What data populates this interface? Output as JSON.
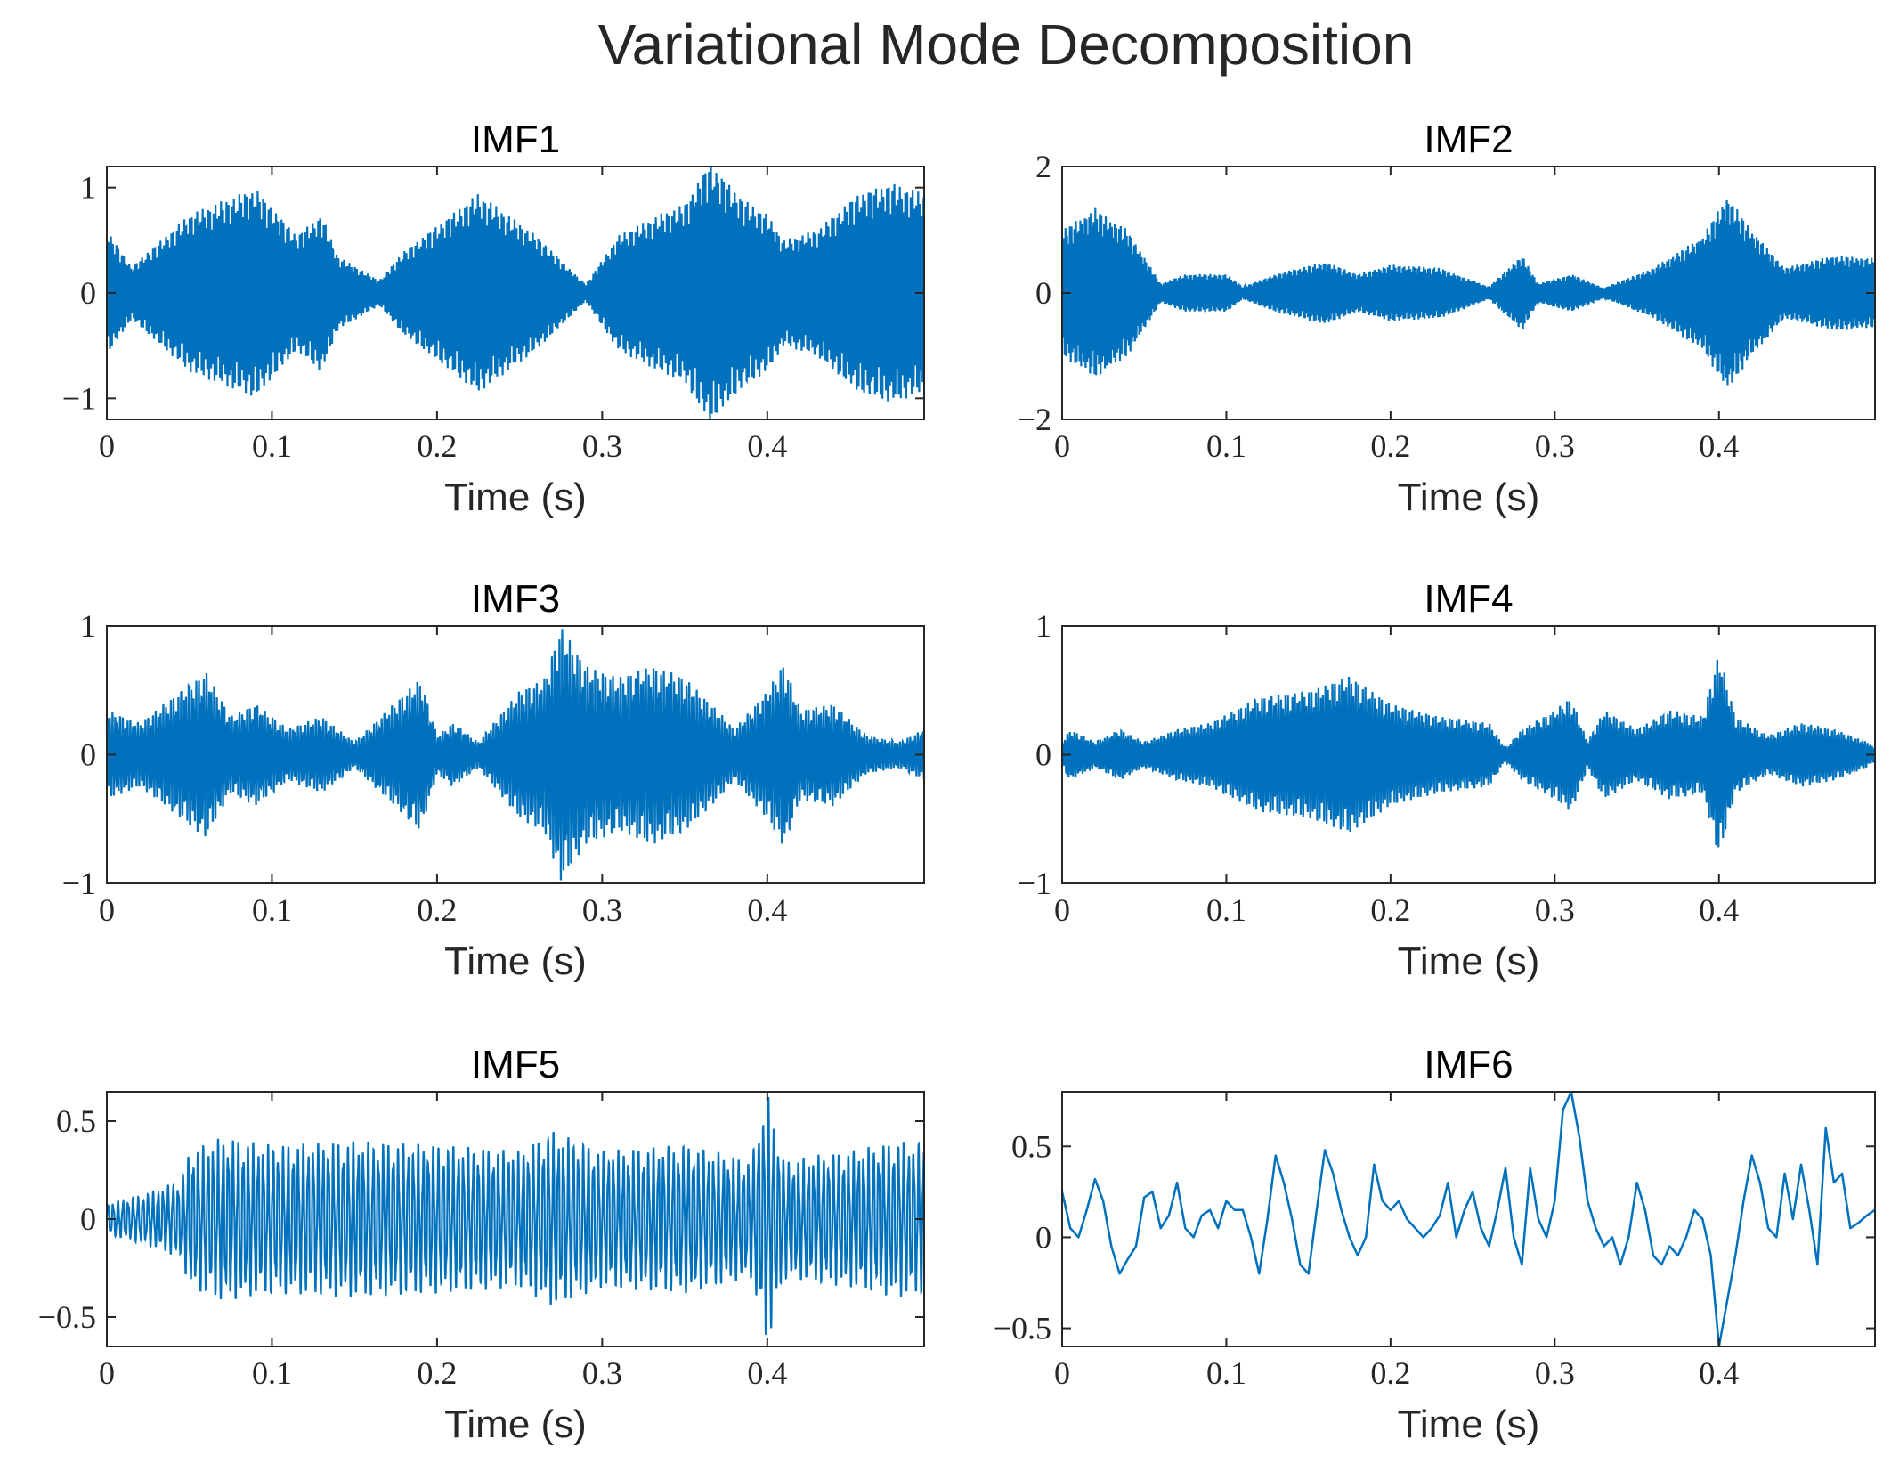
{
  "figure": {
    "title": "Variational Mode Decomposition"
  },
  "colors": {
    "line": "#0072BD",
    "axis": "#262626",
    "background": "#ffffff"
  },
  "chart_data": [
    {
      "type": "line",
      "title": "IMF1",
      "xlabel": "Time (s)",
      "ylabel": "",
      "xlim": [
        0,
        0.495
      ],
      "ylim": [
        -1.2,
        1.2
      ],
      "xticks": [
        0,
        0.1,
        0.2,
        0.3,
        0.4
      ],
      "xtick_labels": [
        "0",
        "0.1",
        "0.2",
        "0.3",
        "0.4"
      ],
      "yticks": [
        -1,
        0,
        1
      ],
      "ytick_labels": [
        "−1",
        "0",
        "1"
      ],
      "signal": {
        "kind": "carrier",
        "cycles_per_second": 900,
        "envelope": [
          [
            0,
            0.6
          ],
          [
            0.015,
            0.25
          ],
          [
            0.05,
            0.75
          ],
          [
            0.09,
            1.0
          ],
          [
            0.115,
            0.55
          ],
          [
            0.13,
            0.75
          ],
          [
            0.14,
            0.35
          ],
          [
            0.165,
            0.12
          ],
          [
            0.18,
            0.4
          ],
          [
            0.225,
            0.95
          ],
          [
            0.26,
            0.55
          ],
          [
            0.29,
            0.08
          ],
          [
            0.31,
            0.55
          ],
          [
            0.335,
            0.75
          ],
          [
            0.35,
            0.85
          ],
          [
            0.365,
            1.25
          ],
          [
            0.385,
            0.9
          ],
          [
            0.4,
            0.75
          ],
          [
            0.41,
            0.5
          ],
          [
            0.43,
            0.6
          ],
          [
            0.455,
            0.95
          ],
          [
            0.475,
            1.05
          ],
          [
            0.495,
            0.95
          ]
        ]
      }
    },
    {
      "type": "line",
      "title": "IMF2",
      "xlabel": "Time (s)",
      "ylabel": "",
      "xlim": [
        0,
        0.495
      ],
      "ylim": [
        -2,
        2
      ],
      "xticks": [
        0,
        0.1,
        0.2,
        0.3,
        0.4
      ],
      "xtick_labels": [
        "0",
        "0.1",
        "0.2",
        "0.3",
        "0.4"
      ],
      "yticks": [
        -2,
        0,
        2
      ],
      "ytick_labels": [
        "−2",
        "0",
        "2"
      ],
      "signal": {
        "kind": "carrier",
        "cycles_per_second": 1100,
        "envelope": [
          [
            0,
            1.0
          ],
          [
            0.02,
            1.35
          ],
          [
            0.04,
            1.0
          ],
          [
            0.06,
            0.15
          ],
          [
            0.075,
            0.3
          ],
          [
            0.1,
            0.3
          ],
          [
            0.11,
            0.1
          ],
          [
            0.13,
            0.3
          ],
          [
            0.16,
            0.5
          ],
          [
            0.18,
            0.3
          ],
          [
            0.2,
            0.45
          ],
          [
            0.23,
            0.4
          ],
          [
            0.26,
            0.1
          ],
          [
            0.28,
            0.6
          ],
          [
            0.29,
            0.15
          ],
          [
            0.31,
            0.3
          ],
          [
            0.33,
            0.08
          ],
          [
            0.36,
            0.4
          ],
          [
            0.39,
            0.9
          ],
          [
            0.405,
            1.55
          ],
          [
            0.42,
            1.0
          ],
          [
            0.44,
            0.4
          ],
          [
            0.47,
            0.6
          ],
          [
            0.495,
            0.55
          ]
        ]
      }
    },
    {
      "type": "line",
      "title": "IMF3",
      "xlabel": "Time (s)",
      "ylabel": "",
      "xlim": [
        0,
        0.495
      ],
      "ylim": [
        -1,
        1
      ],
      "xticks": [
        0,
        0.1,
        0.2,
        0.3,
        0.4
      ],
      "xtick_labels": [
        "0",
        "0.1",
        "0.2",
        "0.3",
        "0.4"
      ],
      "yticks": [
        -1,
        0,
        1
      ],
      "ytick_labels": [
        "−1",
        "0",
        "1"
      ],
      "signal": {
        "kind": "carrier",
        "cycles_per_second": 650,
        "envelope": [
          [
            0,
            0.35
          ],
          [
            0.02,
            0.25
          ],
          [
            0.04,
            0.45
          ],
          [
            0.06,
            0.65
          ],
          [
            0.075,
            0.3
          ],
          [
            0.09,
            0.4
          ],
          [
            0.11,
            0.2
          ],
          [
            0.13,
            0.3
          ],
          [
            0.15,
            0.1
          ],
          [
            0.17,
            0.35
          ],
          [
            0.19,
            0.6
          ],
          [
            0.2,
            0.15
          ],
          [
            0.21,
            0.25
          ],
          [
            0.225,
            0.1
          ],
          [
            0.25,
            0.5
          ],
          [
            0.265,
            0.6
          ],
          [
            0.275,
            1.0
          ],
          [
            0.29,
            0.7
          ],
          [
            0.31,
            0.6
          ],
          [
            0.33,
            0.7
          ],
          [
            0.35,
            0.6
          ],
          [
            0.37,
            0.35
          ],
          [
            0.38,
            0.2
          ],
          [
            0.4,
            0.5
          ],
          [
            0.41,
            0.72
          ],
          [
            0.42,
            0.35
          ],
          [
            0.44,
            0.4
          ],
          [
            0.46,
            0.15
          ],
          [
            0.48,
            0.1
          ],
          [
            0.495,
            0.2
          ]
        ]
      }
    },
    {
      "type": "line",
      "title": "IMF4",
      "xlabel": "Time (s)",
      "ylabel": "",
      "xlim": [
        0,
        0.495
      ],
      "ylim": [
        -1,
        1
      ],
      "xticks": [
        0,
        0.1,
        0.2,
        0.3,
        0.4
      ],
      "xtick_labels": [
        "0",
        "0.1",
        "0.2",
        "0.3",
        "0.4"
      ],
      "yticks": [
        -1,
        0,
        1
      ],
      "ytick_labels": [
        "−1",
        "0",
        "1"
      ],
      "signal": {
        "kind": "carrier",
        "cycles_per_second": 700,
        "envelope": [
          [
            0,
            0.1
          ],
          [
            0.005,
            0.2
          ],
          [
            0.02,
            0.1
          ],
          [
            0.035,
            0.2
          ],
          [
            0.05,
            0.1
          ],
          [
            0.07,
            0.2
          ],
          [
            0.09,
            0.25
          ],
          [
            0.12,
            0.45
          ],
          [
            0.15,
            0.5
          ],
          [
            0.175,
            0.62
          ],
          [
            0.2,
            0.4
          ],
          [
            0.23,
            0.3
          ],
          [
            0.26,
            0.25
          ],
          [
            0.27,
            0.05
          ],
          [
            0.28,
            0.2
          ],
          [
            0.3,
            0.35
          ],
          [
            0.31,
            0.45
          ],
          [
            0.32,
            0.1
          ],
          [
            0.33,
            0.35
          ],
          [
            0.35,
            0.2
          ],
          [
            0.37,
            0.35
          ],
          [
            0.39,
            0.3
          ],
          [
            0.4,
            0.8
          ],
          [
            0.41,
            0.3
          ],
          [
            0.43,
            0.15
          ],
          [
            0.45,
            0.25
          ],
          [
            0.47,
            0.2
          ],
          [
            0.49,
            0.1
          ],
          [
            0.495,
            0.05
          ]
        ]
      }
    },
    {
      "type": "line",
      "title": "IMF5",
      "xlabel": "Time (s)",
      "ylabel": "",
      "xlim": [
        0,
        0.495
      ],
      "ylim": [
        -0.65,
        0.65
      ],
      "xticks": [
        0,
        0.1,
        0.2,
        0.3,
        0.4
      ],
      "xtick_labels": [
        "0",
        "0.1",
        "0.2",
        "0.3",
        "0.4"
      ],
      "yticks": [
        -0.5,
        0,
        0.5
      ],
      "ytick_labels": [
        "−0.5",
        "0",
        "0.5"
      ],
      "signal": {
        "kind": "carrier",
        "cycles_per_second": 330,
        "envelope": [
          [
            0,
            0.08
          ],
          [
            0.02,
            0.12
          ],
          [
            0.045,
            0.2
          ],
          [
            0.05,
            0.35
          ],
          [
            0.07,
            0.42
          ],
          [
            0.1,
            0.38
          ],
          [
            0.15,
            0.4
          ],
          [
            0.2,
            0.38
          ],
          [
            0.25,
            0.35
          ],
          [
            0.27,
            0.45
          ],
          [
            0.3,
            0.35
          ],
          [
            0.35,
            0.38
          ],
          [
            0.39,
            0.3
          ],
          [
            0.4,
            0.65
          ],
          [
            0.41,
            0.3
          ],
          [
            0.45,
            0.35
          ],
          [
            0.48,
            0.4
          ],
          [
            0.495,
            0.38
          ]
        ]
      }
    },
    {
      "type": "line",
      "title": "IMF6",
      "xlabel": "Time (s)",
      "ylabel": "",
      "xlim": [
        0,
        0.495
      ],
      "ylim": [
        -0.6,
        0.8
      ],
      "xticks": [
        0,
        0.1,
        0.2,
        0.3,
        0.4
      ],
      "xtick_labels": [
        "0",
        "0.1",
        "0.2",
        "0.3",
        "0.4"
      ],
      "yticks": [
        -0.5,
        0,
        0.5
      ],
      "ytick_labels": [
        "−0.5",
        "0",
        "0.5"
      ],
      "signal": {
        "kind": "curve",
        "x": [
          0,
          0.005,
          0.01,
          0.015,
          0.02,
          0.025,
          0.03,
          0.035,
          0.04,
          0.045,
          0.05,
          0.055,
          0.06,
          0.065,
          0.07,
          0.075,
          0.08,
          0.085,
          0.09,
          0.095,
          0.1,
          0.105,
          0.11,
          0.115,
          0.12,
          0.125,
          0.13,
          0.135,
          0.14,
          0.145,
          0.15,
          0.155,
          0.16,
          0.165,
          0.17,
          0.175,
          0.18,
          0.185,
          0.19,
          0.195,
          0.2,
          0.205,
          0.21,
          0.215,
          0.22,
          0.225,
          0.23,
          0.235,
          0.24,
          0.245,
          0.25,
          0.255,
          0.26,
          0.265,
          0.27,
          0.275,
          0.28,
          0.285,
          0.29,
          0.295,
          0.3,
          0.305,
          0.31,
          0.315,
          0.32,
          0.325,
          0.33,
          0.335,
          0.34,
          0.345,
          0.35,
          0.355,
          0.36,
          0.365,
          0.37,
          0.375,
          0.38,
          0.385,
          0.39,
          0.395,
          0.4,
          0.405,
          0.41,
          0.415,
          0.42,
          0.425,
          0.43,
          0.435,
          0.44,
          0.445,
          0.45,
          0.455,
          0.46,
          0.465,
          0.47,
          0.475,
          0.48,
          0.485,
          0.49,
          0.495
        ],
        "y": [
          0.25,
          0.05,
          0.0,
          0.15,
          0.32,
          0.2,
          -0.05,
          -0.2,
          -0.12,
          -0.05,
          0.22,
          0.25,
          0.05,
          0.12,
          0.3,
          0.05,
          0.0,
          0.12,
          0.15,
          0.05,
          0.2,
          0.15,
          0.15,
          0.0,
          -0.2,
          0.1,
          0.45,
          0.3,
          0.1,
          -0.15,
          -0.2,
          0.15,
          0.48,
          0.35,
          0.15,
          0.0,
          -0.1,
          0.0,
          0.4,
          0.2,
          0.15,
          0.2,
          0.1,
          0.05,
          0.0,
          0.05,
          0.12,
          0.3,
          0.0,
          0.15,
          0.25,
          0.05,
          -0.05,
          0.15,
          0.38,
          0.0,
          -0.15,
          0.38,
          0.1,
          0.0,
          0.2,
          0.7,
          0.8,
          0.55,
          0.2,
          0.05,
          -0.05,
          0.0,
          -0.15,
          0.0,
          0.3,
          0.15,
          -0.1,
          -0.15,
          -0.05,
          -0.1,
          0.0,
          0.15,
          0.1,
          -0.1,
          -0.6,
          -0.35,
          -0.1,
          0.2,
          0.45,
          0.3,
          0.05,
          0.0,
          0.35,
          0.1,
          0.4,
          0.15,
          -0.15,
          0.6,
          0.3,
          0.35,
          0.05,
          0.08,
          0.12,
          0.15
        ]
      }
    }
  ]
}
